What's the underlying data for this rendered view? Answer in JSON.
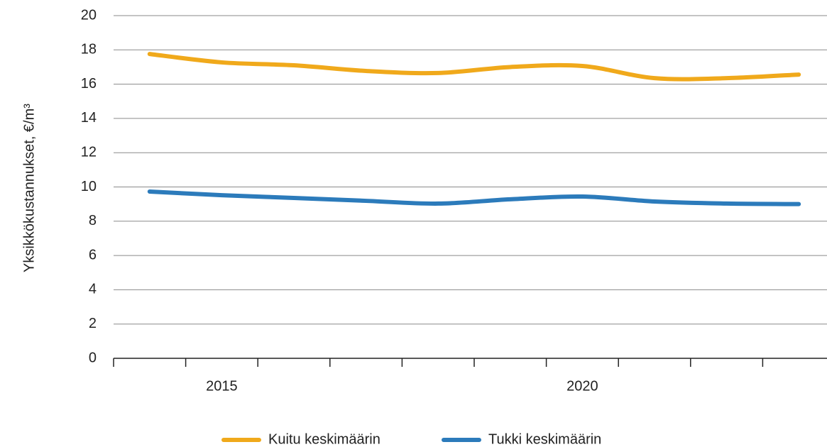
{
  "chart_data": {
    "type": "line",
    "ylabel": "Yksikkökustannukset, €/m³",
    "categories": [
      null,
      "2015",
      null,
      null,
      null,
      null,
      "2020",
      null,
      null,
      null
    ],
    "series": [
      {
        "name": "Kuitu keskimäärin",
        "color": "#f0a91b",
        "values": [
          17.76,
          17.27,
          17.1,
          16.77,
          16.65,
          17.0,
          17.06,
          16.35,
          16.35,
          16.56
        ]
      },
      {
        "name": "Tukki keskimäärin",
        "color": "#2c7bbb",
        "values": [
          9.73,
          9.52,
          9.36,
          9.19,
          9.03,
          9.28,
          9.44,
          9.15,
          9.03,
          9.0
        ]
      }
    ],
    "ylim": [
      0,
      20
    ],
    "yticks": [
      0,
      2,
      4,
      6,
      8,
      10,
      12,
      14,
      16,
      18,
      20
    ],
    "grid": true,
    "legend": "bottom"
  }
}
